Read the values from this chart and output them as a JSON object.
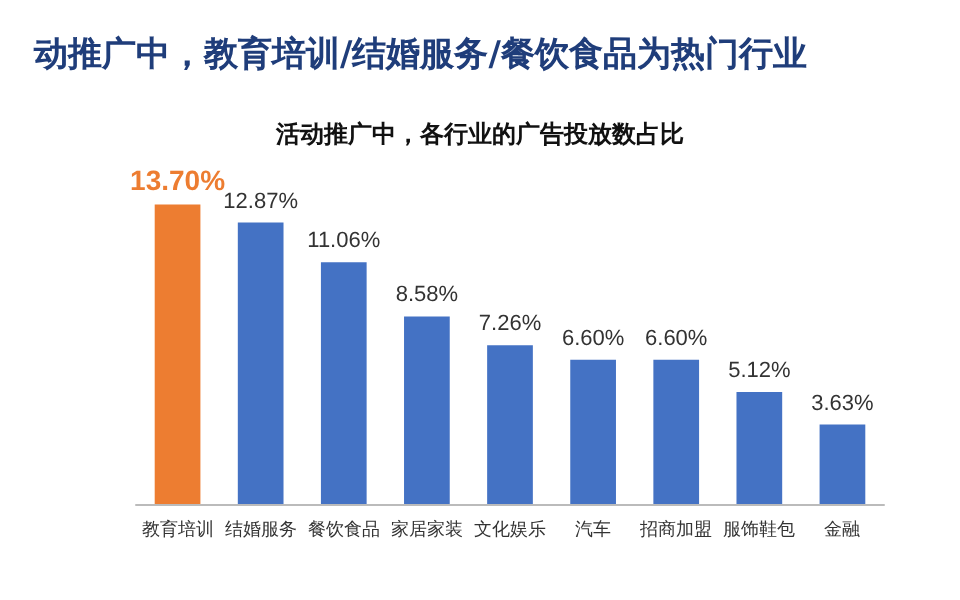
{
  "chart_data": {
    "type": "bar",
    "title": "动推广中，教育培训/结婚服务/餐饮食品为热门行业",
    "subtitle": "活动推广中，各行业的广告投放数占比",
    "categories": [
      "教育培训",
      "结婚服务",
      "餐饮食品",
      "家居家装",
      "文化娱乐",
      "汽车",
      "招商加盟",
      "服饰鞋包",
      "金融"
    ],
    "values": [
      13.7,
      12.87,
      11.06,
      8.58,
      7.26,
      6.6,
      6.6,
      5.12,
      3.63
    ],
    "colors": [
      "#ed7d31",
      "#4472c4",
      "#4472c4",
      "#4472c4",
      "#4472c4",
      "#4472c4",
      "#4472c4",
      "#4472c4",
      "#4472c4"
    ],
    "value_labels": [
      "13.70%",
      "12.87%",
      "11.06%",
      "8.58%",
      "7.26%",
      "6.60%",
      "6.60%",
      "5.12%",
      "3.63%"
    ]
  }
}
